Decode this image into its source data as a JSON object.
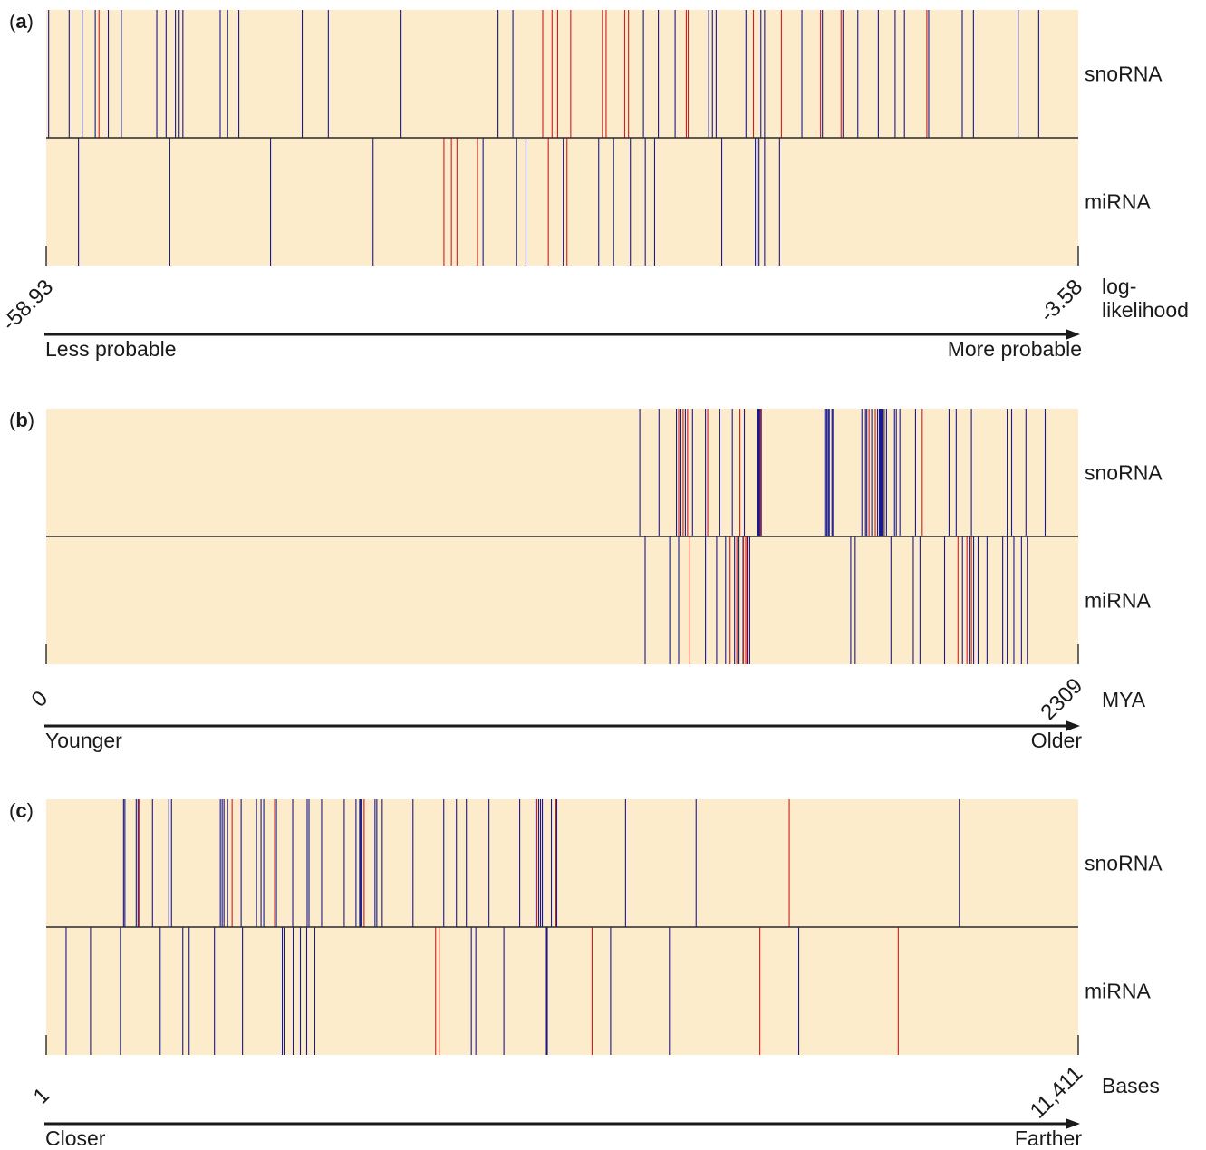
{
  "chart_data": [
    {
      "type": "barcode",
      "panel": "a",
      "x_scale": "linear",
      "xlim": [
        -58.93,
        -3.58
      ],
      "tick_labels": [
        "-58.93",
        "-3.58"
      ],
      "unit_label_lines": [
        "log-",
        "likelihood"
      ],
      "arrow_left_label": "Less probable",
      "arrow_right_label": "More probable",
      "tracks": [
        {
          "name": "snoRNA",
          "blue": [
            -58.8,
            -57.7,
            -57.0,
            -56.3,
            -55.6,
            -54.9,
            -53.0,
            -52.5,
            -52.0,
            -51.8,
            -51.6,
            -49.6,
            -49.2,
            -48.6,
            -45.2,
            -43.8,
            -34.7,
            -33.9,
            -39.9,
            -21.4,
            -20.6,
            -20.4,
            -26.9,
            -26.1,
            -25.2,
            -23.4,
            -23.2,
            -23.0,
            -18.4,
            -17.3,
            -16.2,
            -15.4,
            -14.3,
            -13.4,
            -12.9,
            -11.6,
            -9.8,
            -9.2,
            -6.8,
            -5.7
          ],
          "red": [
            -56.1,
            -24.6,
            -30.8,
            -29.1,
            -28.9,
            -27.9,
            -27.7,
            -32.3,
            -31.8,
            -31.5,
            -24.5,
            -21.0,
            -19.5,
            -17.4,
            -16.3,
            -11.7
          ]
        },
        {
          "name": "miRNA",
          "blue": [
            -57.2,
            -52.3,
            -46.9,
            -41.4,
            -35.5,
            -33.7,
            -33.2,
            -31.2,
            -29.3,
            -28.5,
            -27.6,
            -26.8,
            -26.3,
            -22.7,
            -20.9,
            -20.7,
            -20.4,
            -19.6,
            -20.8
          ],
          "red": [
            -37.6,
            -37.2,
            -36.9,
            -35.8,
            -32.0,
            -31.0
          ]
        }
      ]
    },
    {
      "type": "barcode",
      "panel": "b",
      "x_scale": "linear",
      "xlim": [
        0,
        2309
      ],
      "tick_labels": [
        "0",
        "2309"
      ],
      "unit_label_lines": [
        "MYA"
      ],
      "arrow_left_label": "Younger",
      "arrow_right_label": "Older",
      "tracks": [
        {
          "name": "snoRNA",
          "blue": [
            1328,
            1371,
            1410,
            1420,
            1430,
            1446,
            1475,
            1507,
            1535,
            1562,
            1592,
            1593,
            1594,
            1595,
            1596,
            1598,
            1600,
            1742,
            1745,
            1747,
            1750,
            1752,
            1758,
            1760,
            1825,
            1833,
            1836,
            1847,
            1860,
            1864,
            1866,
            1868,
            1870,
            1875,
            1880,
            1898,
            1902,
            1910,
            1945,
            2020,
            2036,
            2070,
            2150,
            2160,
            2192,
            2235
          ],
          "red": [
            1415,
            1425,
            1435,
            1480,
            1552,
            1599,
            1841,
            1855,
            1960
          ]
        },
        {
          "name": "miRNA",
          "blue": [
            1340,
            1395,
            1415,
            1475,
            1500,
            1520,
            1540,
            1550,
            1559,
            1568,
            1574,
            1800,
            1810,
            1890,
            1940,
            1955,
            2010,
            2050,
            2065,
            2075,
            2085,
            2105,
            2140,
            2150,
            2165,
            2182,
            2195
          ],
          "red": [
            1440,
            1530,
            1545,
            1560,
            1565,
            1570,
            2040,
            2060,
            2070
          ]
        }
      ]
    },
    {
      "type": "barcode",
      "panel": "c",
      "x_scale": "linear",
      "xlim": [
        1,
        11411
      ],
      "tick_labels": [
        "1",
        "11,411"
      ],
      "unit_label_lines": [
        "Bases"
      ],
      "arrow_left_label": "Closer",
      "arrow_right_label": "Farther",
      "tracks": [
        {
          "name": "snoRNA",
          "blue": [
            856,
            871,
            996,
            1016,
            1176,
            1356,
            1386,
            1926,
            1946,
            1966,
            2006,
            2156,
            2326,
            2376,
            2406,
            2546,
            2726,
            2886,
            2906,
            3046,
            3296,
            3426,
            3466,
            3476,
            3486,
            3636,
            3656,
            3716,
            4056,
            4396,
            4536,
            4646,
            4896,
            5236,
            5406,
            5446,
            5466,
            5486,
            5586,
            5646,
            6406,
            7186,
            10096
          ],
          "red": [
            1026,
            2056,
            2526,
            3516,
            5426,
            5636,
            8216
          ]
        },
        {
          "name": "miRNA",
          "blue": [
            221,
            491,
            821,
            1261,
            1511,
            1581,
            1861,
            2171,
            2611,
            2631,
            2731,
            2811,
            2881,
            2971,
            4701,
            4751,
            5061,
            5531,
            5541,
            6241,
            6891,
            8321
          ],
          "red": [
            4306,
            4346,
            6036,
            7891,
            9421
          ]
        }
      ]
    }
  ]
}
